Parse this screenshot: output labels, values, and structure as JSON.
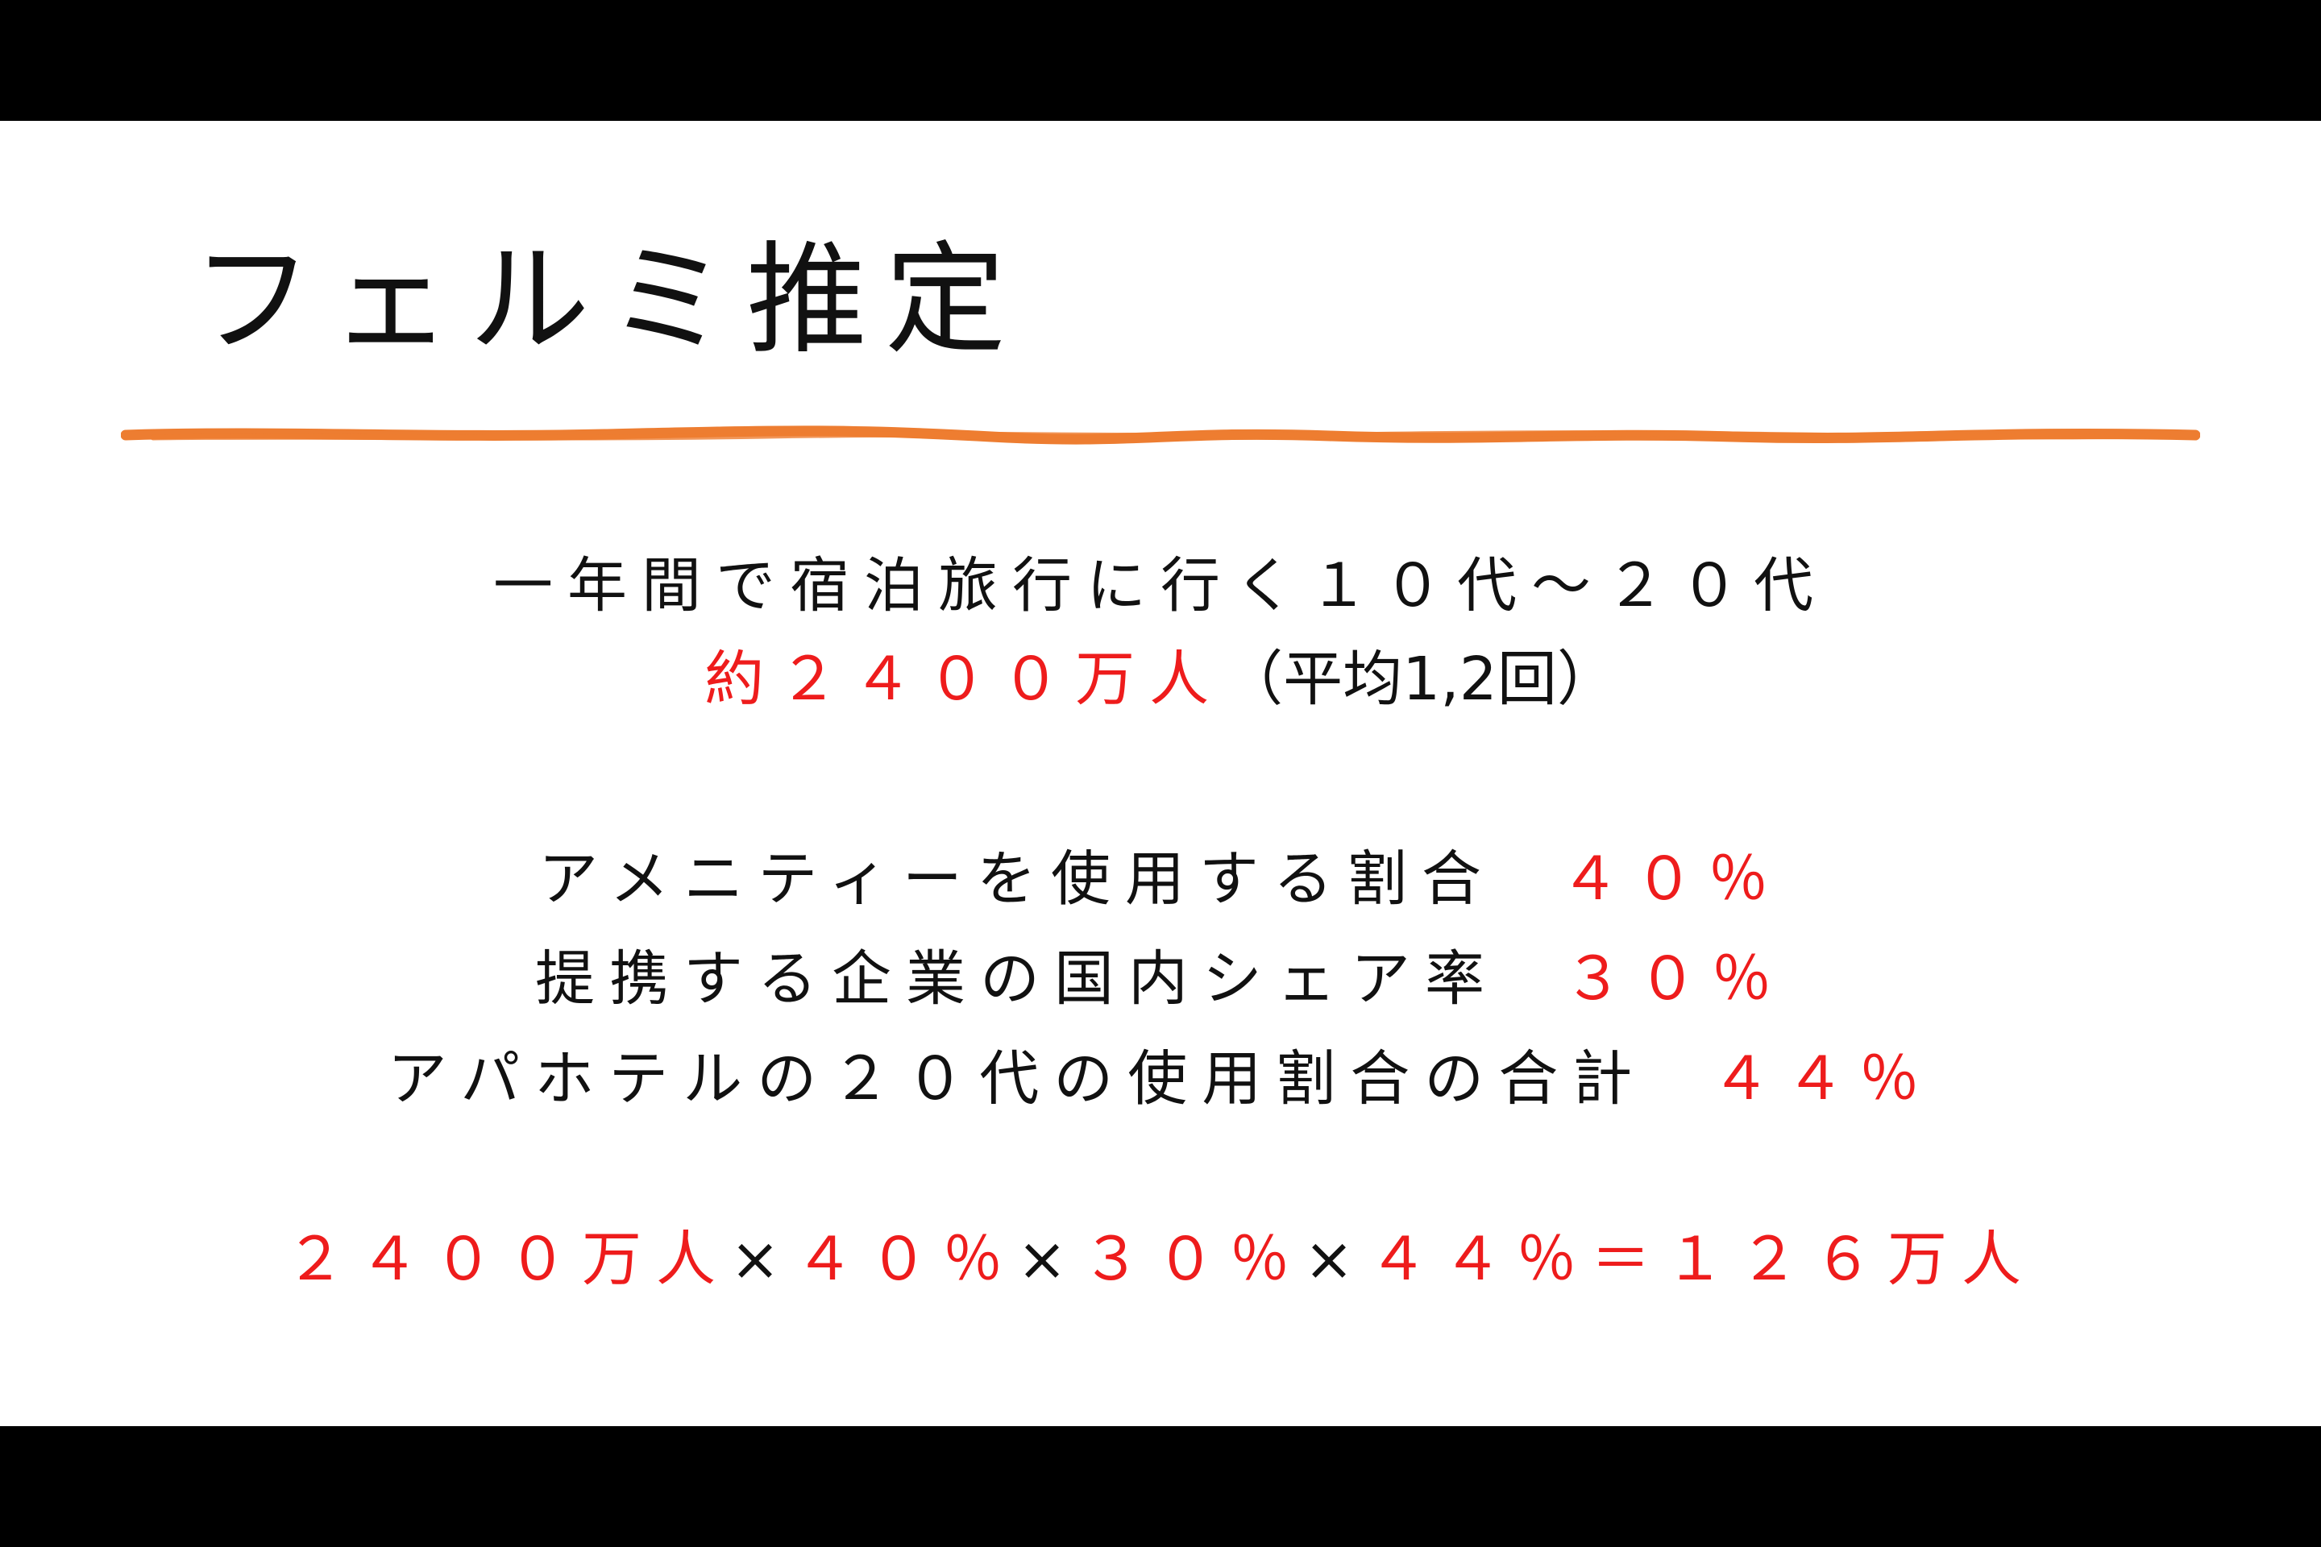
{
  "slide": {
    "title": "フェルミ推定",
    "accent_color": "#ed7d31",
    "highlight_color": "#ee1c1c",
    "line1": "一年間で宿泊旅行に行く１０代〜２０代",
    "line2": {
      "value": "約２４００万人",
      "note": "（平均1,2回）"
    },
    "rates": [
      {
        "label": "アメニティーを使用する割合",
        "value": "４０％"
      },
      {
        "label": "提携する企業の国内シェア率",
        "value": "３０％"
      },
      {
        "label": "アパホテルの２０代の使用割合の合計",
        "value": "４４％"
      }
    ],
    "formula": {
      "term1": "２４００万人",
      "op1": "×",
      "term2": "４０％",
      "op2": "×",
      "term3": "３０％",
      "op3": "×",
      "term4": "４４％",
      "eq": "＝",
      "result": "１２６万人"
    }
  }
}
